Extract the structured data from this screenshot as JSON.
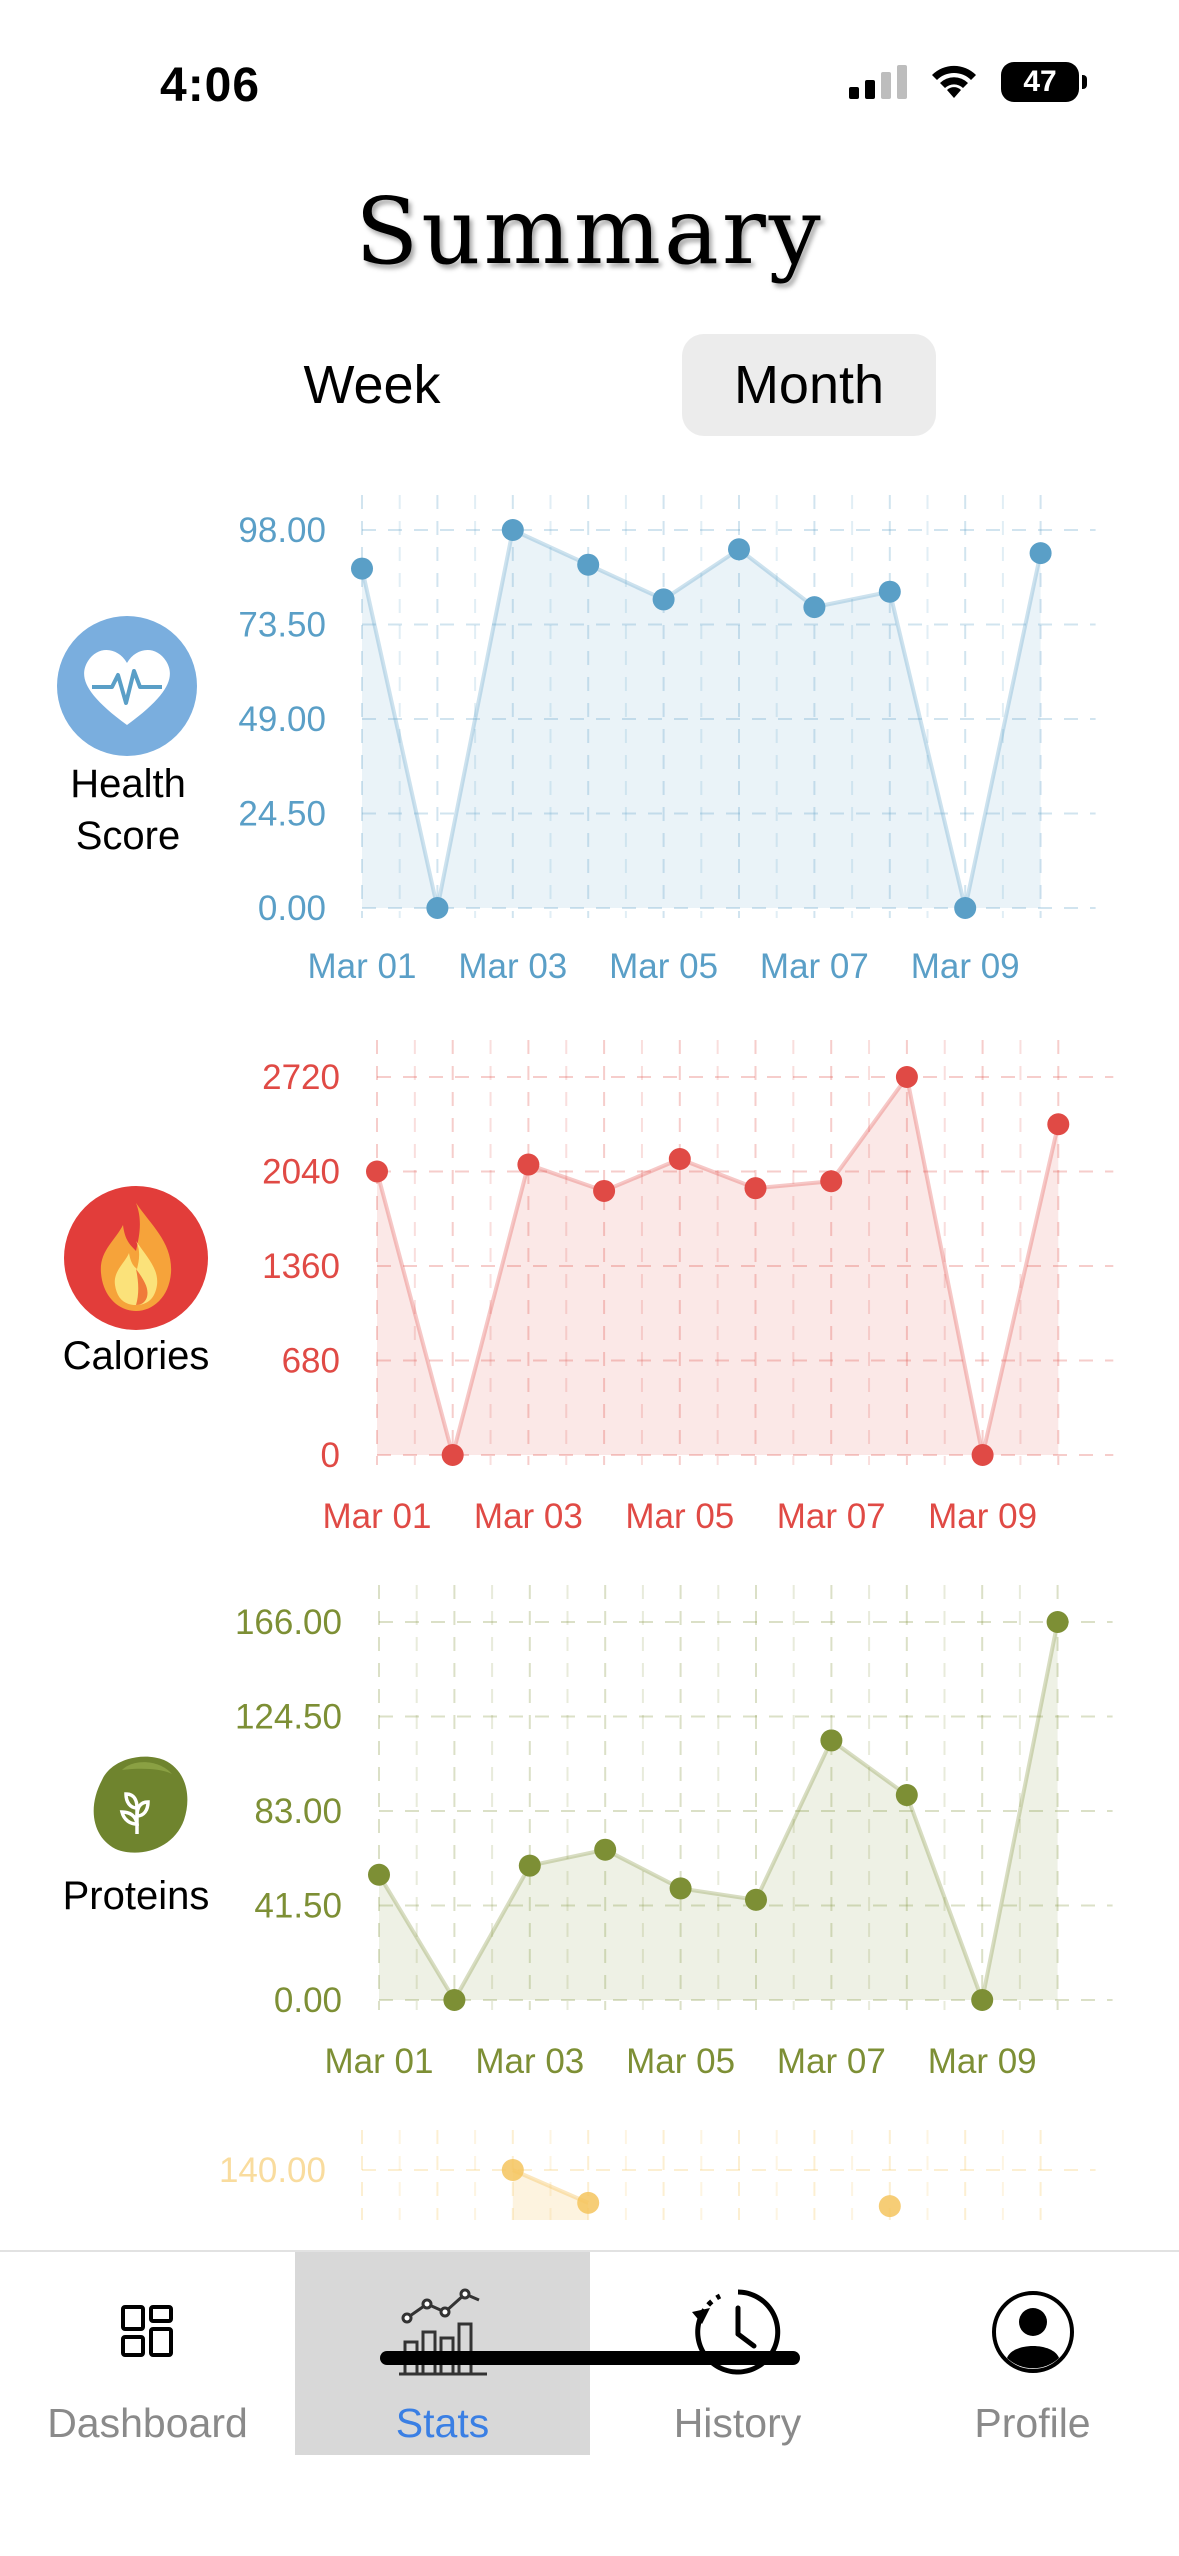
{
  "status": {
    "time": "4:06",
    "battery": "47"
  },
  "title": "Summary",
  "period_toggle": {
    "options": [
      "Week",
      "Month"
    ],
    "selected": "Month"
  },
  "metrics": [
    {
      "label_line1": "Health",
      "label_line2": "Score",
      "icon": "heart-pulse-icon",
      "color": "#5a9fc7"
    },
    {
      "label_line1": "Calories",
      "label_line2": "",
      "icon": "flame-icon",
      "color": "#e04a45"
    },
    {
      "label_line1": "Proteins",
      "label_line2": "",
      "icon": "leaf-icon",
      "color": "#7d8f35"
    }
  ],
  "chart_data": [
    {
      "type": "area",
      "title": "",
      "x": [
        "Mar 01",
        "Mar 02",
        "Mar 03",
        "Mar 04",
        "Mar 05",
        "Mar 06",
        "Mar 07",
        "Mar 08",
        "Mar 09",
        "Mar 10"
      ],
      "x_tick_labels": [
        "Mar 01",
        "Mar 03",
        "Mar 05",
        "Mar 07",
        "Mar 09"
      ],
      "y_ticks": [
        "0.00",
        "24.50",
        "49.00",
        "73.50",
        "98.00"
      ],
      "ylim": [
        0,
        98
      ],
      "series": [
        {
          "values": [
            88,
            0,
            98,
            89,
            80,
            93,
            78,
            82,
            0,
            92
          ]
        }
      ],
      "color": "#5a9fc7",
      "grid": true
    },
    {
      "type": "area",
      "title": "",
      "x": [
        "Mar 01",
        "Mar 02",
        "Mar 03",
        "Mar 04",
        "Mar 05",
        "Mar 06",
        "Mar 07",
        "Mar 08",
        "Mar 09",
        "Mar 10"
      ],
      "x_tick_labels": [
        "Mar 01",
        "Mar 03",
        "Mar 05",
        "Mar 07",
        "Mar 09"
      ],
      "y_ticks": [
        "0",
        "680",
        "1360",
        "2040",
        "2720"
      ],
      "ylim": [
        0,
        2720
      ],
      "series": [
        {
          "values": [
            2040,
            0,
            2090,
            1900,
            2130,
            1920,
            1970,
            2720,
            0,
            2380
          ]
        }
      ],
      "color": "#e04a45",
      "grid": true
    },
    {
      "type": "area",
      "title": "",
      "x": [
        "Mar 01",
        "Mar 02",
        "Mar 03",
        "Mar 04",
        "Mar 05",
        "Mar 06",
        "Mar 07",
        "Mar 08",
        "Mar 09",
        "Mar 10"
      ],
      "x_tick_labels": [
        "Mar 01",
        "Mar 03",
        "Mar 05",
        "Mar 07",
        "Mar 09"
      ],
      "y_ticks": [
        "0.00",
        "41.50",
        "83.00",
        "124.50",
        "166.00"
      ],
      "ylim": [
        0,
        166
      ],
      "series": [
        {
          "values": [
            55,
            0,
            59,
            66,
            49,
            44,
            114,
            90,
            0,
            166
          ]
        }
      ],
      "color": "#7d8f35",
      "grid": true
    },
    {
      "type": "area",
      "title": "",
      "x": [
        "Mar 01",
        "Mar 02",
        "Mar 03",
        "Mar 04",
        "Mar 05",
        "Mar 06",
        "Mar 07",
        "Mar 08",
        "Mar 09",
        "Mar 10"
      ],
      "x_tick_labels": [],
      "y_ticks": [
        "140.00"
      ],
      "ylim": [
        0,
        140
      ],
      "series": [
        {
          "values": [
            null,
            null,
            140,
            130,
            null,
            null,
            null,
            129,
            null,
            null
          ]
        }
      ],
      "color": "#f5c45e",
      "grid": true,
      "partially_visible": true
    }
  ],
  "tabs": [
    {
      "label": "Dashboard",
      "icon": "grid-icon",
      "active": false
    },
    {
      "label": "Stats",
      "icon": "chart-icon",
      "active": true
    },
    {
      "label": "History",
      "icon": "clock-history-icon",
      "active": false
    },
    {
      "label": "Profile",
      "icon": "person-icon",
      "active": false
    }
  ]
}
